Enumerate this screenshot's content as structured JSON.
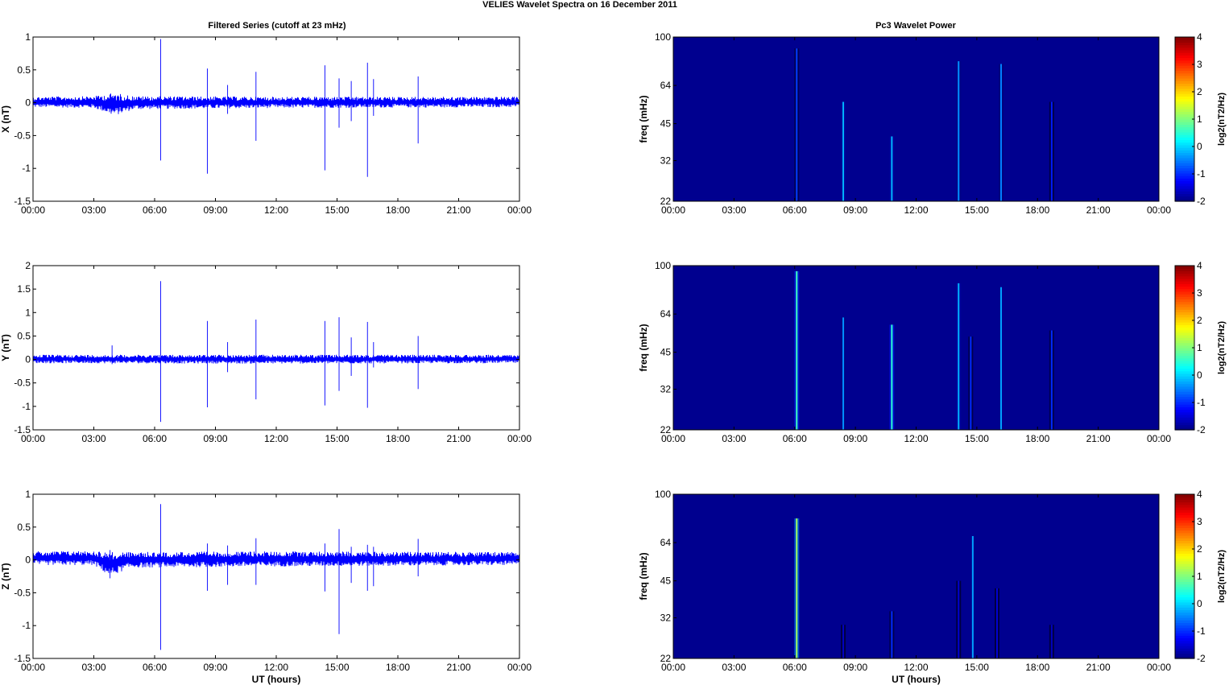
{
  "figure": {
    "title": "VELIES Wavelet Spectra on 16 December  2011",
    "left_column_title": "Filtered Series (cutoff at 23 mHz)",
    "right_column_title": "Pc3 Wavelet Power"
  },
  "colors": {
    "trace": "#0000ff",
    "background_power": "#00008f",
    "axes": "#000000"
  },
  "chart_data": [
    {
      "type": "line",
      "name": "X series",
      "ylabel": "X (nT)",
      "xlabel": "",
      "xlim": [
        0,
        24
      ],
      "ylim": [
        -1.5,
        1
      ],
      "yticks": [
        -1.5,
        -1,
        -0.5,
        0,
        0.5,
        1
      ],
      "yticklabels": [
        "-1.5",
        "-1",
        "-0.5",
        "0",
        "0.5",
        "1"
      ],
      "xticks": [
        0,
        3,
        6,
        9,
        12,
        15,
        18,
        21,
        24
      ],
      "xticklabels": [
        "00:00",
        "03:00",
        "06:00",
        "09:00",
        "12:00",
        "15:00",
        "18:00",
        "21:00",
        "00:00"
      ],
      "noise_band": [
        {
          "t": 0,
          "lo": -0.07,
          "hi": 0.09
        },
        {
          "t": 3,
          "lo": -0.08,
          "hi": 0.1
        },
        {
          "t": 4,
          "lo": -0.2,
          "hi": 0.15
        },
        {
          "t": 5,
          "lo": -0.1,
          "hi": 0.1
        },
        {
          "t": 12,
          "lo": -0.08,
          "hi": 0.09
        },
        {
          "t": 24,
          "lo": -0.07,
          "hi": 0.09
        }
      ],
      "spikes": [
        {
          "t": 6.3,
          "min": -0.88,
          "max": 0.97
        },
        {
          "t": 8.6,
          "min": -1.08,
          "max": 0.52
        },
        {
          "t": 9.6,
          "min": -0.17,
          "max": 0.27
        },
        {
          "t": 11.0,
          "min": -0.58,
          "max": 0.47
        },
        {
          "t": 14.4,
          "min": -1.03,
          "max": 0.57
        },
        {
          "t": 15.1,
          "min": -0.38,
          "max": 0.37
        },
        {
          "t": 15.7,
          "min": -0.28,
          "max": 0.33
        },
        {
          "t": 16.5,
          "min": -1.13,
          "max": 0.61
        },
        {
          "t": 16.8,
          "min": -0.2,
          "max": 0.36
        },
        {
          "t": 19.0,
          "min": -0.62,
          "max": 0.4
        }
      ]
    },
    {
      "type": "line",
      "name": "Y series",
      "ylabel": "Y (nT)",
      "xlabel": "",
      "xlim": [
        0,
        24
      ],
      "ylim": [
        -1.5,
        2
      ],
      "yticks": [
        -1.5,
        -1,
        -0.5,
        0,
        0.5,
        1,
        1.5,
        2
      ],
      "yticklabels": [
        "-1.5",
        "-1",
        "-0.5",
        "0",
        "0.5",
        "1",
        "1.5",
        "2"
      ],
      "xticks": [
        0,
        3,
        6,
        9,
        12,
        15,
        18,
        21,
        24
      ],
      "xticklabels": [
        "00:00",
        "03:00",
        "06:00",
        "09:00",
        "12:00",
        "15:00",
        "18:00",
        "21:00",
        "00:00"
      ],
      "noise_band": [
        {
          "t": 0,
          "lo": -0.08,
          "hi": 0.1
        },
        {
          "t": 12,
          "lo": -0.09,
          "hi": 0.1
        },
        {
          "t": 24,
          "lo": -0.08,
          "hi": 0.1
        }
      ],
      "spikes": [
        {
          "t": 3.9,
          "min": -0.1,
          "max": 0.3
        },
        {
          "t": 6.3,
          "min": -1.33,
          "max": 1.67
        },
        {
          "t": 8.6,
          "min": -1.02,
          "max": 0.82
        },
        {
          "t": 9.6,
          "min": -0.27,
          "max": 0.37
        },
        {
          "t": 11.0,
          "min": -0.85,
          "max": 0.85
        },
        {
          "t": 14.4,
          "min": -0.98,
          "max": 0.82
        },
        {
          "t": 15.1,
          "min": -0.67,
          "max": 0.9
        },
        {
          "t": 15.7,
          "min": -0.35,
          "max": 0.47
        },
        {
          "t": 16.5,
          "min": -1.03,
          "max": 0.8
        },
        {
          "t": 16.8,
          "min": -0.17,
          "max": 0.37
        },
        {
          "t": 19.0,
          "min": -0.63,
          "max": 0.5
        }
      ]
    },
    {
      "type": "line",
      "name": "Z series",
      "ylabel": "Z (nT)",
      "xlabel": "UT (hours)",
      "xlim": [
        0,
        24
      ],
      "ylim": [
        -1.5,
        1
      ],
      "yticks": [
        -1.5,
        -1,
        -0.5,
        0,
        0.5,
        1
      ],
      "yticklabels": [
        "-1.5",
        "-1",
        "-0.5",
        "0",
        "0.5",
        "1"
      ],
      "xticks": [
        0,
        3,
        6,
        9,
        12,
        15,
        18,
        21,
        24
      ],
      "xticklabels": [
        "00:00",
        "03:00",
        "06:00",
        "09:00",
        "12:00",
        "15:00",
        "18:00",
        "21:00",
        "00:00"
      ],
      "noise_band": [
        {
          "t": 0,
          "lo": -0.08,
          "hi": 0.13
        },
        {
          "t": 3,
          "lo": -0.08,
          "hi": 0.14
        },
        {
          "t": 3.8,
          "lo": -0.25,
          "hi": 0.12
        },
        {
          "t": 4.8,
          "lo": -0.12,
          "hi": 0.12
        },
        {
          "t": 12,
          "lo": -0.1,
          "hi": 0.13
        },
        {
          "t": 24,
          "lo": -0.08,
          "hi": 0.12
        }
      ],
      "spikes": [
        {
          "t": 3.8,
          "min": -0.28,
          "max": 0.15
        },
        {
          "t": 6.3,
          "min": -1.37,
          "max": 0.85
        },
        {
          "t": 8.6,
          "min": -0.47,
          "max": 0.25
        },
        {
          "t": 9.6,
          "min": -0.38,
          "max": 0.22
        },
        {
          "t": 11.0,
          "min": -0.38,
          "max": 0.33
        },
        {
          "t": 14.4,
          "min": -0.48,
          "max": 0.25
        },
        {
          "t": 15.1,
          "min": -1.13,
          "max": 0.47
        },
        {
          "t": 15.7,
          "min": -0.35,
          "max": 0.2
        },
        {
          "t": 16.5,
          "min": -0.47,
          "max": 0.23
        },
        {
          "t": 16.8,
          "min": -0.4,
          "max": 0.2
        },
        {
          "t": 19.0,
          "min": -0.25,
          "max": 0.32
        }
      ]
    },
    {
      "type": "heatmap",
      "name": "X wavelet power",
      "ylabel": "freq (mHz)",
      "xlabel": "",
      "xlim": [
        0,
        24
      ],
      "ylim": [
        22,
        100
      ],
      "yscale": "log",
      "yticks": [
        22,
        32,
        45,
        64,
        100
      ],
      "yticklabels": [
        "22",
        "32",
        "45",
        "64",
        "100"
      ],
      "xticks": [
        0,
        3,
        6,
        9,
        12,
        15,
        18,
        21,
        24
      ],
      "xticklabels": [
        "00:00",
        "03:00",
        "06:00",
        "09:00",
        "12:00",
        "15:00",
        "18:00",
        "21:00",
        "00:00"
      ],
      "colorbar": {
        "label": "log2(nT2/Hz)",
        "min": -2,
        "max": 4,
        "ticks": [
          "-2",
          "-1",
          "0",
          "1",
          "2",
          "3",
          "4"
        ]
      },
      "bursts": [
        {
          "t": 6.1,
          "fmax": 90,
          "level": -0.9
        },
        {
          "t": 8.4,
          "fmax": 55,
          "level": -0.2
        },
        {
          "t": 10.8,
          "fmax": 40,
          "level": -0.2
        },
        {
          "t": 14.1,
          "fmax": 80,
          "level": -0.4
        },
        {
          "t": 16.2,
          "fmax": 78,
          "level": -0.5
        },
        {
          "t": 18.7,
          "fmax": 55,
          "level": -1.1
        }
      ]
    },
    {
      "type": "heatmap",
      "name": "Y wavelet power",
      "ylabel": "freq (mHz)",
      "xlabel": "",
      "xlim": [
        0,
        24
      ],
      "ylim": [
        22,
        100
      ],
      "yscale": "log",
      "yticks": [
        22,
        32,
        45,
        64,
        100
      ],
      "yticklabels": [
        "22",
        "32",
        "45",
        "64",
        "100"
      ],
      "xticks": [
        0,
        3,
        6,
        9,
        12,
        15,
        18,
        21,
        24
      ],
      "xticklabels": [
        "00:00",
        "03:00",
        "06:00",
        "09:00",
        "12:00",
        "15:00",
        "18:00",
        "21:00",
        "00:00"
      ],
      "colorbar": {
        "label": "log2(nT2/Hz)",
        "min": -2,
        "max": 4,
        "ticks": [
          "-2",
          "-1",
          "0",
          "1",
          "2",
          "3",
          "4"
        ]
      },
      "bursts": [
        {
          "t": 6.1,
          "fmax": 95,
          "level": 0.6
        },
        {
          "t": 8.4,
          "fmax": 62,
          "level": -0.4
        },
        {
          "t": 10.8,
          "fmax": 58,
          "level": 0.5
        },
        {
          "t": 14.1,
          "fmax": 85,
          "level": -0.2
        },
        {
          "t": 14.7,
          "fmax": 52,
          "level": -1.0
        },
        {
          "t": 16.2,
          "fmax": 82,
          "level": -0.3
        },
        {
          "t": 18.7,
          "fmax": 55,
          "level": -1.0
        }
      ]
    },
    {
      "type": "heatmap",
      "name": "Z wavelet power",
      "ylabel": "freq (mHz)",
      "xlabel": "UT (hours)",
      "xlim": [
        0,
        24
      ],
      "ylim": [
        22,
        100
      ],
      "yscale": "log",
      "yticks": [
        22,
        32,
        45,
        64,
        100
      ],
      "yticklabels": [
        "22",
        "32",
        "45",
        "64",
        "100"
      ],
      "xticks": [
        0,
        3,
        6,
        9,
        12,
        15,
        18,
        21,
        24
      ],
      "xticklabels": [
        "00:00",
        "03:00",
        "06:00",
        "09:00",
        "12:00",
        "15:00",
        "18:00",
        "21:00",
        "00:00"
      ],
      "colorbar": {
        "label": "log2(nT2/Hz)",
        "min": -2,
        "max": 4,
        "ticks": [
          "-2",
          "-1",
          "0",
          "1",
          "2",
          "3",
          "4"
        ]
      },
      "bursts": [
        {
          "t": 6.1,
          "fmax": 80,
          "level": 1.2
        },
        {
          "t": 8.4,
          "fmax": 30,
          "level": -1.6
        },
        {
          "t": 10.8,
          "fmax": 34,
          "level": -1.0
        },
        {
          "t": 14.1,
          "fmax": 45,
          "level": -1.5
        },
        {
          "t": 14.8,
          "fmax": 68,
          "level": -0.3
        },
        {
          "t": 16.0,
          "fmax": 42,
          "level": -1.5
        },
        {
          "t": 18.7,
          "fmax": 30,
          "level": -1.6
        }
      ]
    }
  ]
}
